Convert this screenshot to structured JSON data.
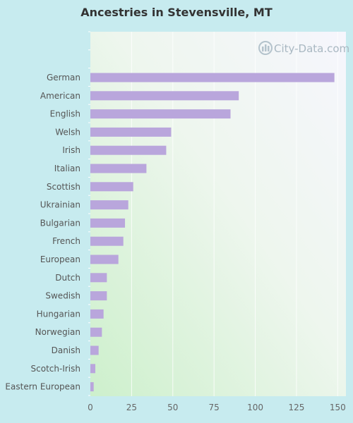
{
  "chart_data": {
    "type": "bar",
    "orientation": "horizontal",
    "title": "Ancestries in Stevensville, MT",
    "categories": [
      "German",
      "American",
      "English",
      "Welsh",
      "Irish",
      "Italian",
      "Scottish",
      "Ukrainian",
      "Bulgarian",
      "French",
      "European",
      "Dutch",
      "Swedish",
      "Hungarian",
      "Norwegian",
      "Danish",
      "Scotch-Irish",
      "Eastern European"
    ],
    "values": [
      148,
      90,
      85,
      49,
      46,
      34,
      26,
      23,
      21,
      20,
      17,
      10,
      10,
      8,
      7,
      5,
      3,
      2
    ],
    "xlim": [
      0,
      155
    ],
    "xticks": [
      0,
      25,
      50,
      75,
      100,
      125,
      150
    ],
    "xlabel": "",
    "ylabel": "",
    "grid": true,
    "bar_color": "#b9a6dc",
    "watermark": "City-Data.com"
  }
}
